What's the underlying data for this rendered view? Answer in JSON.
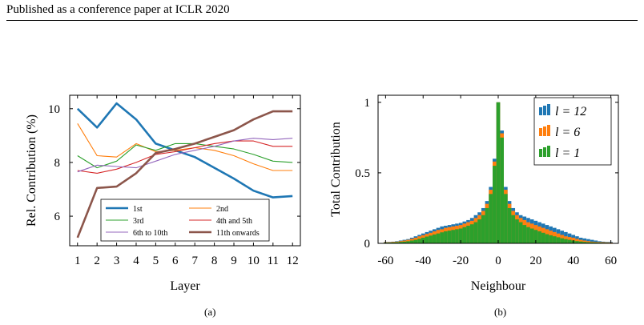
{
  "header": {
    "text": "Published as a conference paper at ICLR 2020"
  },
  "captions": {
    "a": "(a)",
    "b": "(b)"
  },
  "chart_data": [
    {
      "type": "line",
      "title": "",
      "xlabel": "Layer",
      "ylabel": "Rel. Contribution (%)",
      "x": [
        1,
        2,
        3,
        4,
        5,
        6,
        7,
        8,
        9,
        10,
        11,
        12
      ],
      "xticks": [
        "1",
        "2",
        "3",
        "4",
        "5",
        "6",
        "7",
        "8",
        "9",
        "10",
        "11",
        "12"
      ],
      "yticks": [
        "6",
        "8",
        "10"
      ],
      "xlim": [
        0.6,
        12.4
      ],
      "ylim": [
        4.9,
        10.5
      ],
      "legend_location": "bottom",
      "series": [
        {
          "name": "1st",
          "color": "#1f77b4",
          "bold": true,
          "values": [
            10.0,
            9.3,
            10.2,
            9.6,
            8.7,
            8.45,
            8.2,
            7.8,
            7.4,
            6.95,
            6.7,
            6.75
          ]
        },
        {
          "name": "2nd",
          "color": "#ff7f0e",
          "bold": false,
          "values": [
            9.45,
            8.25,
            8.2,
            8.7,
            8.4,
            8.45,
            8.55,
            8.45,
            8.25,
            7.95,
            7.7,
            7.7
          ]
        },
        {
          "name": "3rd",
          "color": "#2ca02c",
          "bold": false,
          "values": [
            8.25,
            7.8,
            8.05,
            8.65,
            8.45,
            8.7,
            8.7,
            8.6,
            8.5,
            8.3,
            8.05,
            8.0
          ]
        },
        {
          "name": "4th and 5th",
          "color": "#d62728",
          "bold": false,
          "values": [
            7.7,
            7.6,
            7.75,
            8.0,
            8.3,
            8.4,
            8.55,
            8.7,
            8.8,
            8.8,
            8.6,
            8.6
          ]
        },
        {
          "name": "6th to 10th",
          "color": "#9467bd",
          "bold": false,
          "values": [
            7.65,
            7.9,
            7.85,
            7.8,
            8.05,
            8.3,
            8.45,
            8.6,
            8.8,
            8.9,
            8.85,
            8.9
          ]
        },
        {
          "name": "11th onwards",
          "color": "#8c564b",
          "bold": true,
          "values": [
            5.2,
            7.05,
            7.1,
            7.6,
            8.35,
            8.5,
            8.7,
            8.95,
            9.2,
            9.6,
            9.9,
            9.9
          ]
        }
      ]
    },
    {
      "type": "bar",
      "title": "",
      "xlabel": "Neighbour",
      "ylabel": "Total Contribution",
      "xticks": [
        "-60",
        "-40",
        "-20",
        "0",
        "20",
        "40",
        "60"
      ],
      "yticks": [
        "0",
        "0.5",
        "1"
      ],
      "xlim": [
        -64,
        64
      ],
      "ylim": [
        0,
        1.05
      ],
      "legend_location": "top-right",
      "neighbours": [
        -60,
        -58,
        -56,
        -54,
        -52,
        -50,
        -48,
        -46,
        -44,
        -42,
        -40,
        -38,
        -36,
        -34,
        -32,
        -30,
        -28,
        -26,
        -24,
        -22,
        -20,
        -18,
        -16,
        -14,
        -12,
        -10,
        -8,
        -6,
        -4,
        -2,
        0,
        2,
        4,
        6,
        8,
        10,
        12,
        14,
        16,
        18,
        20,
        22,
        24,
        26,
        28,
        30,
        32,
        34,
        36,
        38,
        40,
        42,
        44,
        46,
        48,
        50,
        52,
        54,
        56,
        58,
        60
      ],
      "series": [
        {
          "name": "l = 12",
          "color": "#1f77b4",
          "values": [
            0.01,
            0.01,
            0.012,
            0.015,
            0.02,
            0.025,
            0.03,
            0.04,
            0.05,
            0.06,
            0.07,
            0.08,
            0.09,
            0.1,
            0.11,
            0.12,
            0.125,
            0.13,
            0.135,
            0.14,
            0.145,
            0.155,
            0.165,
            0.18,
            0.2,
            0.22,
            0.25,
            0.3,
            0.4,
            0.6,
            1.0,
            0.8,
            0.4,
            0.3,
            0.25,
            0.22,
            0.2,
            0.19,
            0.18,
            0.17,
            0.16,
            0.15,
            0.14,
            0.13,
            0.12,
            0.11,
            0.1,
            0.09,
            0.08,
            0.07,
            0.06,
            0.05,
            0.04,
            0.035,
            0.03,
            0.025,
            0.02,
            0.015,
            0.012,
            0.01,
            0.01
          ]
        },
        {
          "name": "l = 6",
          "color": "#ff7f0e",
          "values": [
            0.008,
            0.008,
            0.01,
            0.012,
            0.016,
            0.02,
            0.025,
            0.032,
            0.04,
            0.05,
            0.058,
            0.067,
            0.075,
            0.085,
            0.095,
            0.1,
            0.11,
            0.115,
            0.12,
            0.125,
            0.13,
            0.14,
            0.15,
            0.16,
            0.18,
            0.2,
            0.23,
            0.28,
            0.38,
            0.58,
            1.0,
            0.78,
            0.38,
            0.28,
            0.23,
            0.2,
            0.18,
            0.165,
            0.15,
            0.14,
            0.13,
            0.12,
            0.11,
            0.1,
            0.09,
            0.08,
            0.07,
            0.06,
            0.05,
            0.045,
            0.04,
            0.032,
            0.025,
            0.02,
            0.016,
            0.012,
            0.01,
            0.009,
            0.008,
            0.007,
            0.006
          ]
        },
        {
          "name": "l = 1",
          "color": "#2ca02c",
          "values": [
            0.005,
            0.005,
            0.006,
            0.008,
            0.01,
            0.012,
            0.015,
            0.02,
            0.025,
            0.032,
            0.04,
            0.048,
            0.055,
            0.063,
            0.07,
            0.078,
            0.085,
            0.09,
            0.095,
            0.1,
            0.105,
            0.115,
            0.125,
            0.135,
            0.15,
            0.17,
            0.2,
            0.25,
            0.35,
            0.55,
            1.0,
            0.75,
            0.35,
            0.25,
            0.2,
            0.17,
            0.15,
            0.13,
            0.115,
            0.105,
            0.095,
            0.085,
            0.075,
            0.065,
            0.057,
            0.05,
            0.043,
            0.036,
            0.03,
            0.025,
            0.02,
            0.016,
            0.013,
            0.01,
            0.008,
            0.007,
            0.006,
            0.005,
            0.004,
            0.004,
            0.003
          ]
        }
      ]
    }
  ]
}
